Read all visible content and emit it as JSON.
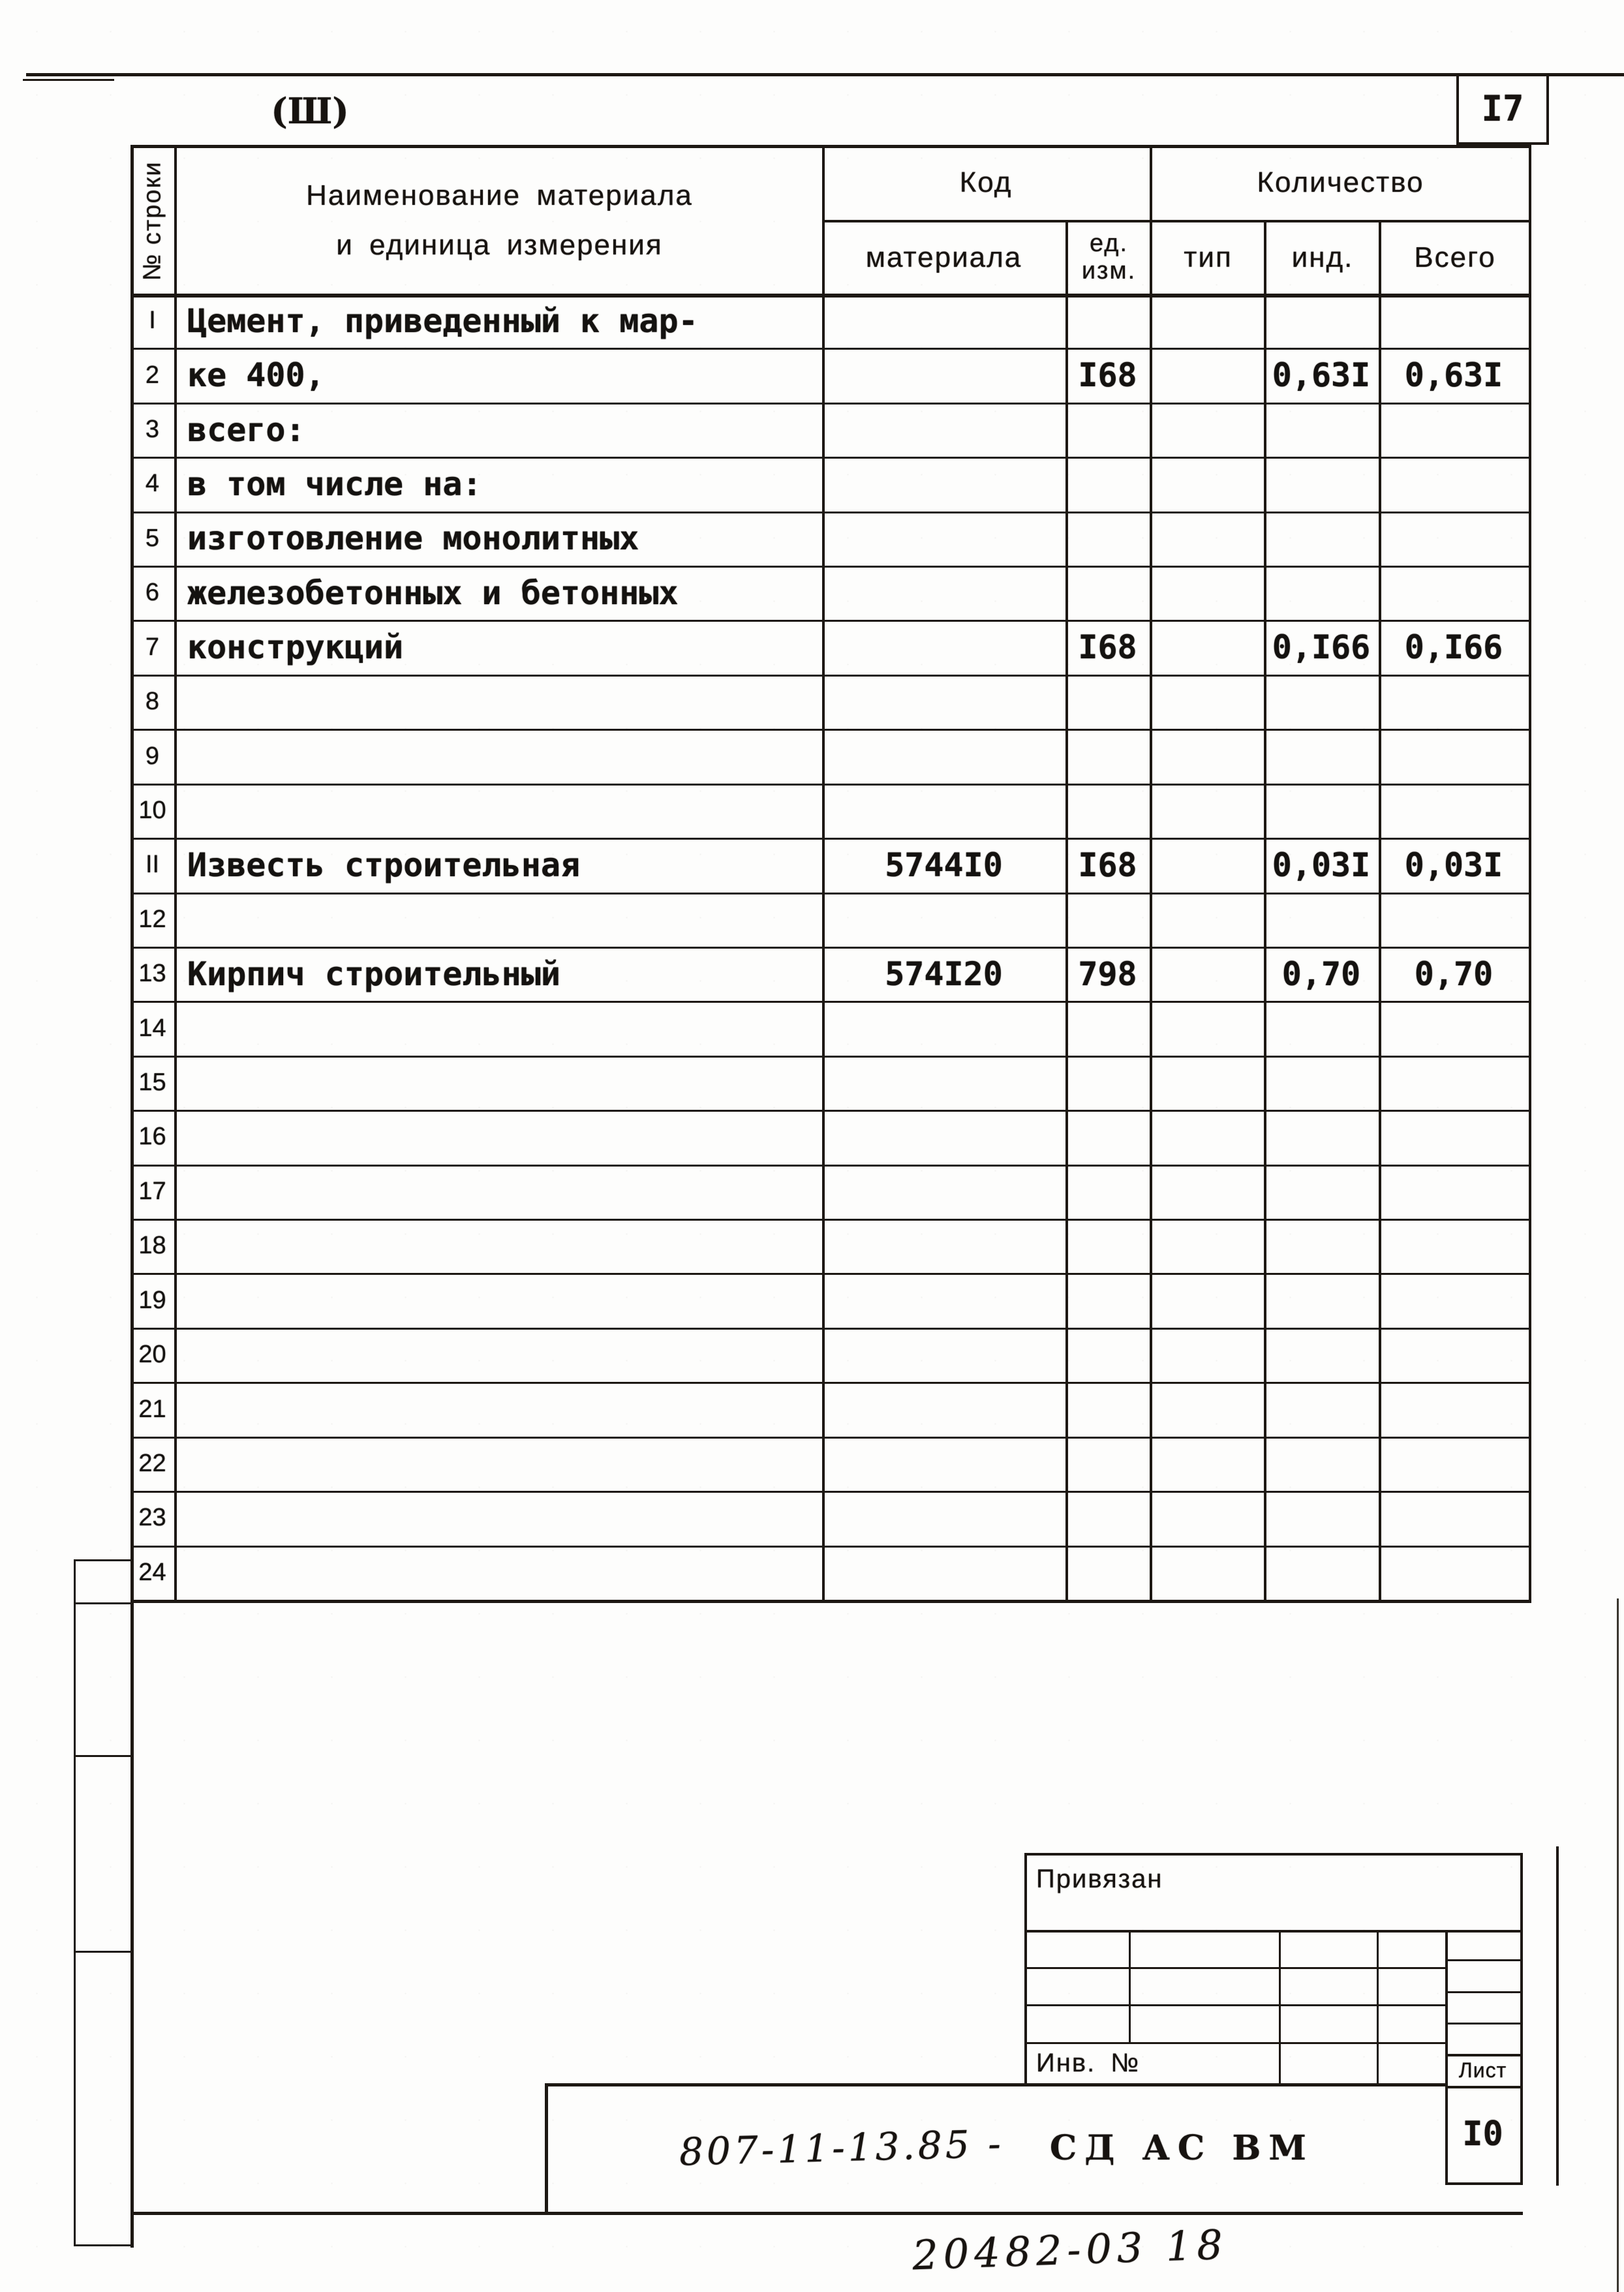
{
  "page": {
    "section_mark": "(Ш)",
    "page_number": "I7",
    "handwritten_note": "20482-03 18"
  },
  "table": {
    "row_col_header": "№ строки",
    "name_header_line1": "Наименование материала",
    "name_header_line2": "и единица измерения",
    "code_header": "Код",
    "code_sub": "материала",
    "unit_sub_line1": "ед.",
    "unit_sub_line2": "изм.",
    "qty_header": "Количество",
    "qty_type": "тип",
    "qty_ind": "инд.",
    "qty_total": "Всего",
    "rows": [
      {
        "n": "I",
        "name": "Цемент, приведенный к мар-",
        "code": "",
        "unit": "",
        "type": "",
        "ind": "",
        "total": ""
      },
      {
        "n": "2",
        "name": "ке 400,",
        "code": "",
        "unit": "I68",
        "type": "",
        "ind": "0,63I",
        "total": "0,63I"
      },
      {
        "n": "3",
        "name": "всего:",
        "code": "",
        "unit": "",
        "type": "",
        "ind": "",
        "total": ""
      },
      {
        "n": "4",
        "name": "в том числе на:",
        "code": "",
        "unit": "",
        "type": "",
        "ind": "",
        "total": ""
      },
      {
        "n": "5",
        "name": "изготовление монолитных",
        "code": "",
        "unit": "",
        "type": "",
        "ind": "",
        "total": ""
      },
      {
        "n": "6",
        "name": "железобетонных и бетонных",
        "code": "",
        "unit": "",
        "type": "",
        "ind": "",
        "total": ""
      },
      {
        "n": "7",
        "name": "конструкций",
        "code": "",
        "unit": "I68",
        "type": "",
        "ind": "0,I66",
        "total": "0,I66"
      },
      {
        "n": "8",
        "name": "",
        "code": "",
        "unit": "",
        "type": "",
        "ind": "",
        "total": ""
      },
      {
        "n": "9",
        "name": "",
        "code": "",
        "unit": "",
        "type": "",
        "ind": "",
        "total": ""
      },
      {
        "n": "10",
        "name": "",
        "code": "",
        "unit": "",
        "type": "",
        "ind": "",
        "total": ""
      },
      {
        "n": "II",
        "name": "Известь строительная",
        "code": "5744I0",
        "unit": "I68",
        "type": "",
        "ind": "0,03I",
        "total": "0,03I"
      },
      {
        "n": "12",
        "name": "",
        "code": "",
        "unit": "",
        "type": "",
        "ind": "",
        "total": ""
      },
      {
        "n": "13",
        "name": "Кирпич строительный",
        "code": "574I20",
        "unit": "798",
        "type": "",
        "ind": "0,70",
        "total": "0,70"
      },
      {
        "n": "14",
        "name": "",
        "code": "",
        "unit": "",
        "type": "",
        "ind": "",
        "total": ""
      },
      {
        "n": "15",
        "name": "",
        "code": "",
        "unit": "",
        "type": "",
        "ind": "",
        "total": ""
      },
      {
        "n": "16",
        "name": "",
        "code": "",
        "unit": "",
        "type": "",
        "ind": "",
        "total": ""
      },
      {
        "n": "17",
        "name": "",
        "code": "",
        "unit": "",
        "type": "",
        "ind": "",
        "total": ""
      },
      {
        "n": "18",
        "name": "",
        "code": "",
        "unit": "",
        "type": "",
        "ind": "",
        "total": ""
      },
      {
        "n": "19",
        "name": "",
        "code": "",
        "unit": "",
        "type": "",
        "ind": "",
        "total": ""
      },
      {
        "n": "20",
        "name": "",
        "code": "",
        "unit": "",
        "type": "",
        "ind": "",
        "total": ""
      },
      {
        "n": "21",
        "name": "",
        "code": "",
        "unit": "",
        "type": "",
        "ind": "",
        "total": ""
      },
      {
        "n": "22",
        "name": "",
        "code": "",
        "unit": "",
        "type": "",
        "ind": "",
        "total": ""
      },
      {
        "n": "23",
        "name": "",
        "code": "",
        "unit": "",
        "type": "",
        "ind": "",
        "total": ""
      },
      {
        "n": "24",
        "name": "",
        "code": "",
        "unit": "",
        "type": "",
        "ind": "",
        "total": ""
      }
    ]
  },
  "title_block": {
    "bound_label": "Привязан",
    "inventory_label": "Инв. №",
    "doc_number": "807-11-13.85 -",
    "doc_code": "СД АС ВМ",
    "sheet_label": "Лист",
    "sheet_value": "I0"
  }
}
